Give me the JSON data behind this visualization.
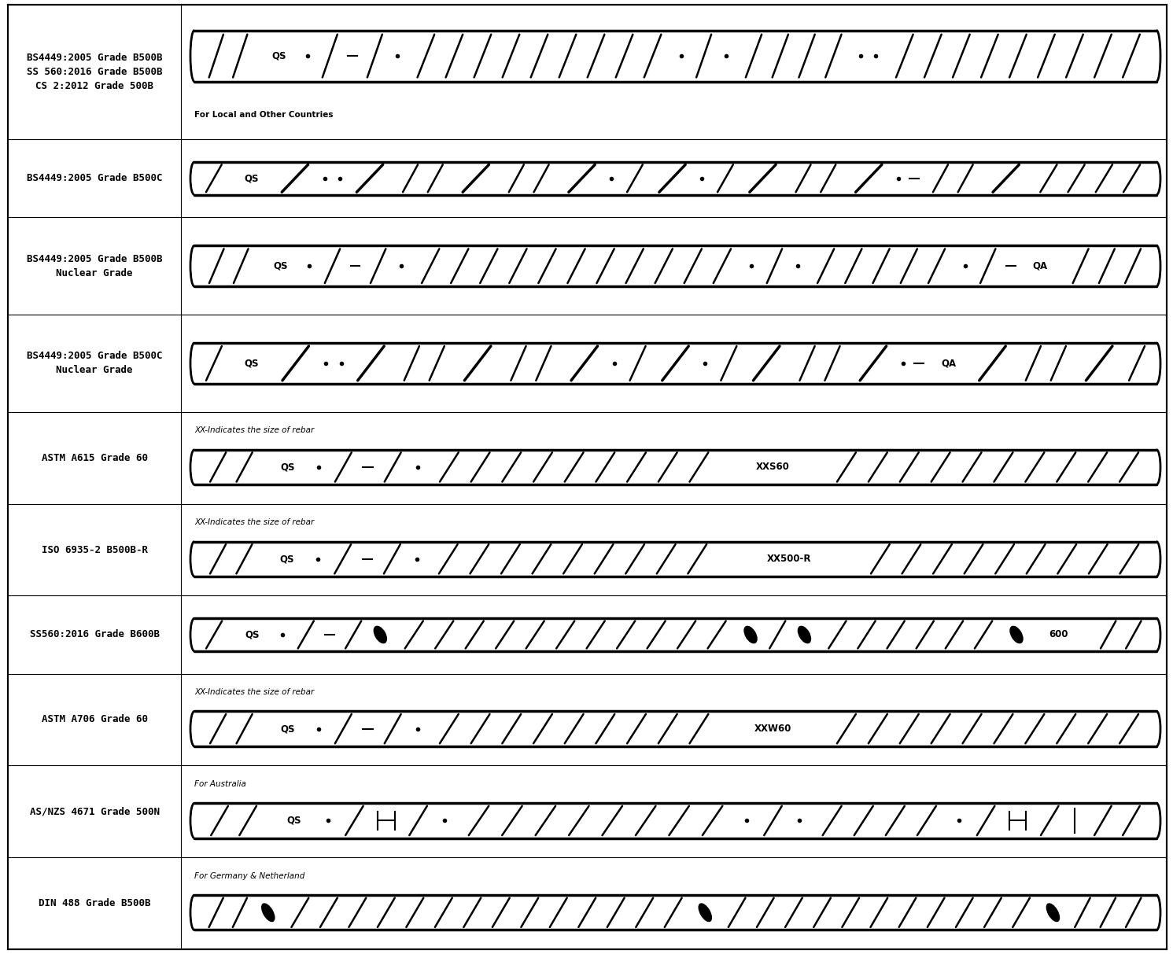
{
  "rows": [
    {
      "label": "BS4449:2005 Grade B500B\nSS 560:2016 Grade B500B\nCS 2:2012 Grade 500B",
      "note": "For Local and Other Countries",
      "note_pos": "bottom",
      "label_lines": 3,
      "rebar_segments": [
        {
          "type": "slash",
          "count": 2
        },
        {
          "type": "text",
          "text": "QS"
        },
        {
          "type": "dot"
        },
        {
          "type": "slash",
          "count": 1
        },
        {
          "type": "dash"
        },
        {
          "type": "slash",
          "count": 1
        },
        {
          "type": "dot"
        },
        {
          "type": "slash",
          "count": 9
        },
        {
          "type": "dot"
        },
        {
          "type": "slash",
          "count": 1
        },
        {
          "type": "dot"
        },
        {
          "type": "slash",
          "count": 4
        },
        {
          "type": "dot"
        },
        {
          "type": "dot"
        },
        {
          "type": "slash",
          "count": 9
        }
      ]
    },
    {
      "label": "BS4449:2005 Grade B500C",
      "note": "",
      "note_pos": "",
      "label_lines": 1,
      "rebar_segments": [
        {
          "type": "slash",
          "count": 1
        },
        {
          "type": "text",
          "text": "QS"
        },
        {
          "type": "bigslash"
        },
        {
          "type": "dot"
        },
        {
          "type": "dot"
        },
        {
          "type": "bigslash"
        },
        {
          "type": "slash",
          "count": 2
        },
        {
          "type": "bigslash"
        },
        {
          "type": "slash",
          "count": 2
        },
        {
          "type": "bigslash"
        },
        {
          "type": "dot"
        },
        {
          "type": "slash",
          "count": 1
        },
        {
          "type": "bigslash"
        },
        {
          "type": "dot"
        },
        {
          "type": "slash",
          "count": 1
        },
        {
          "type": "bigslash"
        },
        {
          "type": "slash",
          "count": 2
        },
        {
          "type": "bigslash"
        },
        {
          "type": "dot"
        },
        {
          "type": "dash"
        },
        {
          "type": "slash",
          "count": 2
        },
        {
          "type": "bigslash"
        },
        {
          "type": "slash",
          "count": 4
        }
      ]
    },
    {
      "label": "BS4449:2005 Grade B500B\nNuclear Grade",
      "note": "",
      "note_pos": "",
      "label_lines": 2,
      "rebar_segments": [
        {
          "type": "slash",
          "count": 2
        },
        {
          "type": "text",
          "text": "QS"
        },
        {
          "type": "dot"
        },
        {
          "type": "slash",
          "count": 1
        },
        {
          "type": "dash"
        },
        {
          "type": "slash",
          "count": 1
        },
        {
          "type": "dot"
        },
        {
          "type": "slash",
          "count": 11
        },
        {
          "type": "dot"
        },
        {
          "type": "slash",
          "count": 1
        },
        {
          "type": "dot"
        },
        {
          "type": "slash",
          "count": 5
        },
        {
          "type": "dot"
        },
        {
          "type": "slash",
          "count": 1
        },
        {
          "type": "dash"
        },
        {
          "type": "text",
          "text": "QA"
        },
        {
          "type": "slash",
          "count": 3
        }
      ]
    },
    {
      "label": "BS4449:2005 Grade B500C\nNuclear Grade",
      "note": "",
      "note_pos": "",
      "label_lines": 2,
      "rebar_segments": [
        {
          "type": "slash",
          "count": 1
        },
        {
          "type": "text",
          "text": "QS"
        },
        {
          "type": "bigslash"
        },
        {
          "type": "dot"
        },
        {
          "type": "dot"
        },
        {
          "type": "bigslash"
        },
        {
          "type": "slash",
          "count": 2
        },
        {
          "type": "bigslash"
        },
        {
          "type": "slash",
          "count": 2
        },
        {
          "type": "bigslash"
        },
        {
          "type": "dot"
        },
        {
          "type": "slash",
          "count": 1
        },
        {
          "type": "bigslash"
        },
        {
          "type": "dot"
        },
        {
          "type": "slash",
          "count": 1
        },
        {
          "type": "bigslash"
        },
        {
          "type": "slash",
          "count": 2
        },
        {
          "type": "bigslash"
        },
        {
          "type": "dot"
        },
        {
          "type": "dash"
        },
        {
          "type": "text",
          "text": "QA"
        },
        {
          "type": "bigslash"
        },
        {
          "type": "slash",
          "count": 2
        },
        {
          "type": "bigslash"
        },
        {
          "type": "slash",
          "count": 1
        }
      ]
    },
    {
      "label": "ASTM A615 Grade 60",
      "note": "XX-Indicates the size of rebar",
      "note_pos": "top",
      "label_lines": 1,
      "rebar_segments": [
        {
          "type": "slash",
          "count": 2
        },
        {
          "type": "text",
          "text": "QS"
        },
        {
          "type": "dot"
        },
        {
          "type": "slash",
          "count": 1
        },
        {
          "type": "dash"
        },
        {
          "type": "slash",
          "count": 1
        },
        {
          "type": "dot"
        },
        {
          "type": "slash",
          "count": 9
        },
        {
          "type": "text",
          "text": "XXS60"
        },
        {
          "type": "slash",
          "count": 10
        }
      ]
    },
    {
      "label": "ISO 6935-2 B500B-R",
      "note": "XX-Indicates the size of rebar",
      "note_pos": "top",
      "label_lines": 1,
      "rebar_segments": [
        {
          "type": "slash",
          "count": 2
        },
        {
          "type": "text",
          "text": "QS"
        },
        {
          "type": "dot"
        },
        {
          "type": "slash",
          "count": 1
        },
        {
          "type": "dash"
        },
        {
          "type": "slash",
          "count": 1
        },
        {
          "type": "dot"
        },
        {
          "type": "slash",
          "count": 9
        },
        {
          "type": "text",
          "text": "XX500-R"
        },
        {
          "type": "slash",
          "count": 9
        }
      ]
    },
    {
      "label": "SS560:2016 Grade B600B",
      "note": "",
      "note_pos": "",
      "label_lines": 1,
      "rebar_segments": [
        {
          "type": "slash",
          "count": 1
        },
        {
          "type": "text",
          "text": "QS"
        },
        {
          "type": "dot"
        },
        {
          "type": "slash",
          "count": 1
        },
        {
          "type": "dash"
        },
        {
          "type": "slash",
          "count": 1
        },
        {
          "type": "bigdot"
        },
        {
          "type": "slash",
          "count": 11
        },
        {
          "type": "bigdot"
        },
        {
          "type": "slash",
          "count": 1
        },
        {
          "type": "bigdot"
        },
        {
          "type": "slash",
          "count": 6
        },
        {
          "type": "bigdot"
        },
        {
          "type": "text",
          "text": "600"
        },
        {
          "type": "slash",
          "count": 2
        }
      ]
    },
    {
      "label": "ASTM A706 Grade 60",
      "note": "XX-Indicates the size of rebar",
      "note_pos": "top",
      "label_lines": 1,
      "rebar_segments": [
        {
          "type": "slash",
          "count": 2
        },
        {
          "type": "text",
          "text": "QS"
        },
        {
          "type": "dot"
        },
        {
          "type": "slash",
          "count": 1
        },
        {
          "type": "dash"
        },
        {
          "type": "slash",
          "count": 1
        },
        {
          "type": "dot"
        },
        {
          "type": "slash",
          "count": 9
        },
        {
          "type": "text",
          "text": "XXW60"
        },
        {
          "type": "slash",
          "count": 10
        }
      ]
    },
    {
      "label": "AS/NZS 4671 Grade 500N",
      "note": "For Australia",
      "note_pos": "top",
      "label_lines": 1,
      "rebar_segments": [
        {
          "type": "slash",
          "count": 2
        },
        {
          "type": "text",
          "text": "QS"
        },
        {
          "type": "dot"
        },
        {
          "type": "slash",
          "count": 1
        },
        {
          "type": "Hbar"
        },
        {
          "type": "slash",
          "count": 1
        },
        {
          "type": "dot"
        },
        {
          "type": "slash",
          "count": 8
        },
        {
          "type": "dot"
        },
        {
          "type": "slash",
          "count": 1
        },
        {
          "type": "dot"
        },
        {
          "type": "slash",
          "count": 4
        },
        {
          "type": "dot"
        },
        {
          "type": "slash",
          "count": 1
        },
        {
          "type": "Hbar"
        },
        {
          "type": "slash",
          "count": 1
        },
        {
          "type": "vbar"
        },
        {
          "type": "slash",
          "count": 2
        }
      ]
    },
    {
      "label": "DIN 488 Grade B500B",
      "note": "For Germany & Netherland",
      "note_pos": "top",
      "label_lines": 1,
      "rebar_segments": [
        {
          "type": "slash",
          "count": 2
        },
        {
          "type": "bigdot"
        },
        {
          "type": "slash",
          "count": 14
        },
        {
          "type": "bigdot"
        },
        {
          "type": "slash",
          "count": 11
        },
        {
          "type": "bigdot"
        },
        {
          "type": "slash",
          "count": 3
        }
      ]
    }
  ]
}
